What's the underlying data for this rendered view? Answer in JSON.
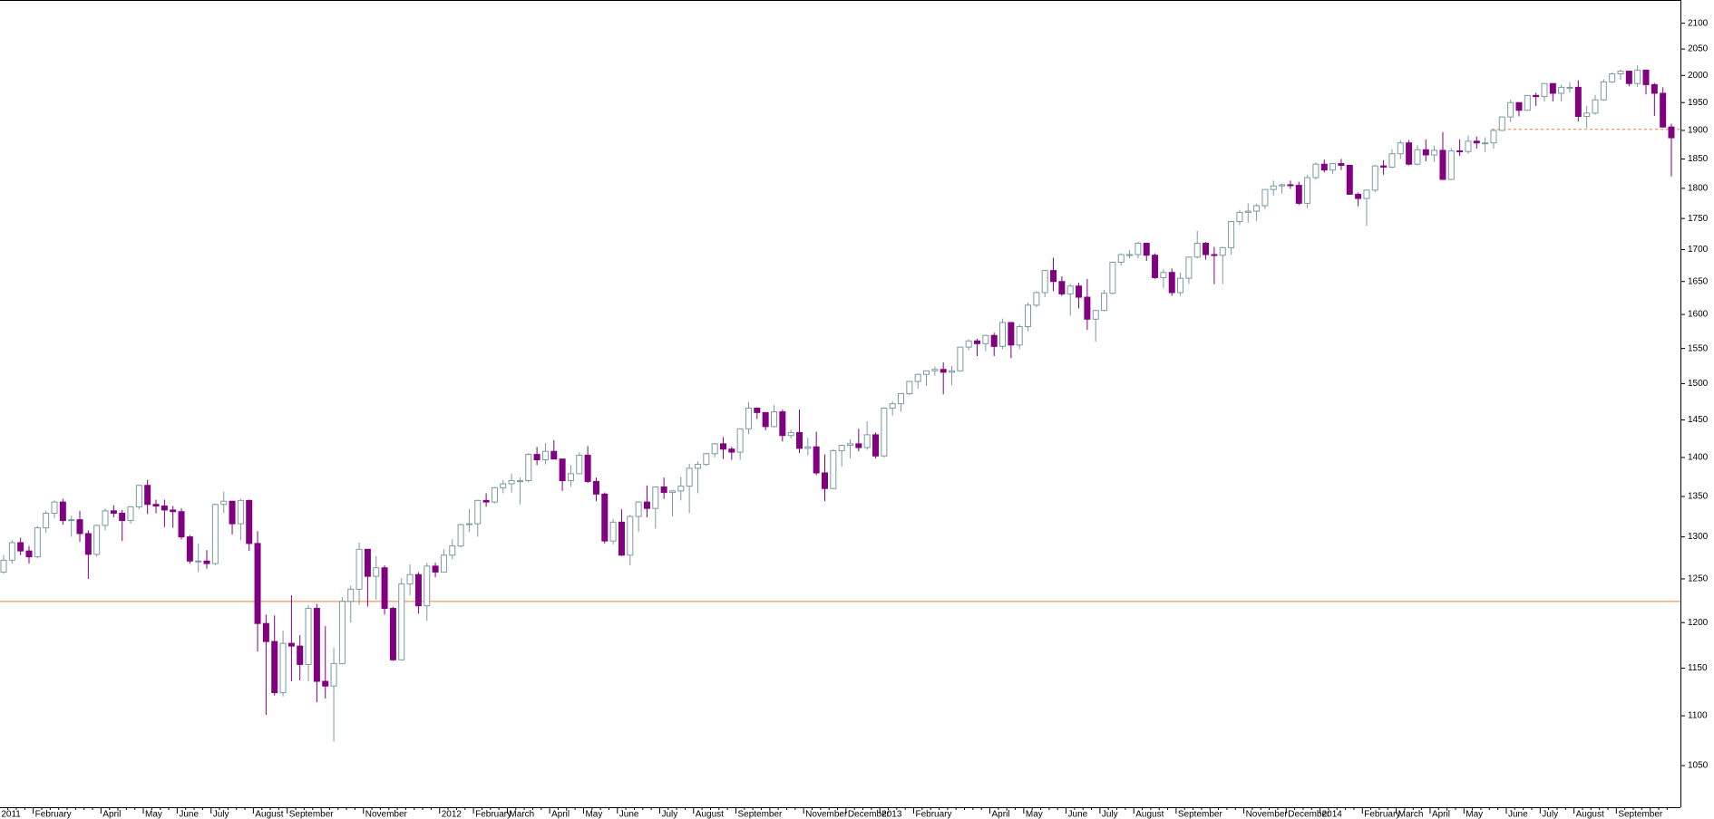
{
  "chart_data": {
    "type": "candlestick",
    "log": true,
    "ylim": [
      1010,
      2146
    ],
    "yticks": [
      1050,
      1100,
      1150,
      1200,
      1250,
      1300,
      1350,
      1400,
      1450,
      1500,
      1550,
      1600,
      1650,
      1700,
      1750,
      1800,
      1850,
      1900,
      1950,
      2000,
      2050,
      2100
    ],
    "up_color": "#7a9aa0",
    "down_color": "#800080",
    "hlines": [
      {
        "value": 1224,
        "color": "#f4a070",
        "style": "solid"
      },
      {
        "value": 1902,
        "color": "#f4a070",
        "style": "dashed"
      }
    ],
    "categories": [
      "2011",
      null,
      null,
      null,
      "February",
      null,
      null,
      null,
      null,
      null,
      null,
      null,
      "April",
      null,
      null,
      null,
      null,
      "May",
      null,
      null,
      null,
      "June",
      null,
      null,
      null,
      "July",
      null,
      null,
      null,
      null,
      "August",
      null,
      null,
      null,
      "September",
      null,
      null,
      null,
      null,
      null,
      null,
      null,
      null,
      "November",
      null,
      null,
      null,
      null,
      null,
      null,
      null,
      null,
      "2012",
      null,
      null,
      null,
      "February",
      null,
      null,
      null,
      "March",
      null,
      null,
      null,
      null,
      "April",
      null,
      null,
      null,
      "May",
      null,
      null,
      null,
      "June",
      null,
      null,
      null,
      null,
      "July",
      null,
      null,
      null,
      "August",
      null,
      null,
      null,
      null,
      "September",
      null,
      null,
      null,
      null,
      null,
      null,
      null,
      "November",
      null,
      null,
      null,
      null,
      "December",
      null,
      null,
      null,
      "2013",
      null,
      null,
      null,
      "February",
      null,
      null,
      null,
      null,
      null,
      null,
      null,
      null,
      "April",
      null,
      null,
      null,
      "May",
      null,
      null,
      null,
      null,
      "June",
      null,
      null,
      null,
      "July",
      null,
      null,
      null,
      "August",
      null,
      null,
      null,
      null,
      "September",
      null,
      null,
      null,
      null,
      null,
      null,
      null,
      "November",
      null,
      null,
      null,
      null,
      "December",
      null,
      null,
      null,
      "2014",
      null,
      null,
      null,
      null,
      "February",
      null,
      null,
      null,
      "March",
      null,
      null,
      null,
      "April",
      null,
      null,
      null,
      "May",
      null,
      null,
      null,
      null,
      "June",
      null,
      null,
      null,
      "July",
      null,
      null,
      null,
      "August",
      null,
      null,
      null,
      null,
      "September",
      null,
      null,
      null,
      null,
      null,
      null
    ],
    "open": [
      1258,
      1272,
      1293,
      1283,
      1276,
      1311,
      1329,
      1343,
      1320,
      1321,
      1304,
      1279,
      1314,
      1332,
      1329,
      1320,
      1337,
      1364,
      1340,
      1338,
      1333,
      1331,
      1300,
      1271,
      1271,
      1268,
      1340,
      1344,
      1316,
      1345,
      1292,
      1199,
      1179,
      1124,
      1177,
      1174,
      1154,
      1216,
      1136,
      1131,
      1155,
      1224,
      1238,
      1285,
      1253,
      1263,
      1216,
      1159,
      1244,
      1255,
      1219,
      1265,
      1258,
      1278,
      1289,
      1315,
      1316,
      1345,
      1343,
      1361,
      1366,
      1370,
      1370,
      1404,
      1397,
      1408,
      1398,
      1370,
      1379,
      1403,
      1369,
      1353,
      1295,
      1318,
      1278,
      1325,
      1343,
      1335,
      1362,
      1355,
      1357,
      1363,
      1386,
      1391,
      1405,
      1418,
      1411,
      1407,
      1438,
      1466,
      1460,
      1441,
      1461,
      1429,
      1433,
      1412,
      1414,
      1380,
      1360,
      1409,
      1416,
      1418,
      1413,
      1430,
      1402,
      1466,
      1472,
      1486,
      1503,
      1513,
      1518,
      1520,
      1516,
      1518,
      1552,
      1561,
      1557,
      1569,
      1553,
      1588,
      1555,
      1582,
      1614,
      1633,
      1667,
      1650,
      1631,
      1643,
      1626,
      1593,
      1606,
      1632,
      1680,
      1692,
      1692,
      1710,
      1691,
      1656,
      1664,
      1633,
      1655,
      1688,
      1710,
      1692,
      1691,
      1703,
      1745,
      1760,
      1762,
      1771,
      1798,
      1804,
      1806,
      1805,
      1775,
      1818,
      1841,
      1831,
      1842,
      1839,
      1790,
      1783,
      1797,
      1838,
      1836,
      1859,
      1878,
      1841,
      1866,
      1857,
      1865,
      1815,
      1864,
      1863,
      1881,
      1878,
      1878,
      1900,
      1924,
      1950,
      1936,
      1963,
      1961,
      1985,
      1967,
      1978,
      1978,
      1925,
      1931,
      1955,
      1988,
      2003,
      2008,
      1985,
      2010,
      1983,
      1967,
      1906
    ],
    "high": [
      1278,
      1296,
      1299,
      1289,
      1313,
      1332,
      1345,
      1347,
      1326,
      1332,
      1308,
      1315,
      1335,
      1339,
      1333,
      1338,
      1365,
      1371,
      1346,
      1346,
      1338,
      1335,
      1302,
      1292,
      1284,
      1341,
      1356,
      1344,
      1347,
      1346,
      1307,
      1209,
      1208,
      1191,
      1231,
      1186,
      1220,
      1221,
      1196,
      1172,
      1229,
      1242,
      1293,
      1285,
      1277,
      1266,
      1218,
      1251,
      1267,
      1258,
      1269,
      1269,
      1285,
      1297,
      1316,
      1334,
      1346,
      1354,
      1362,
      1371,
      1379,
      1374,
      1406,
      1414,
      1419,
      1423,
      1398,
      1390,
      1407,
      1415,
      1374,
      1355,
      1322,
      1334,
      1327,
      1344,
      1364,
      1362,
      1374,
      1358,
      1375,
      1392,
      1395,
      1406,
      1419,
      1427,
      1414,
      1438,
      1474,
      1467,
      1460,
      1470,
      1464,
      1437,
      1464,
      1426,
      1434,
      1404,
      1411,
      1417,
      1424,
      1438,
      1448,
      1433,
      1467,
      1475,
      1486,
      1503,
      1514,
      1518,
      1524,
      1530,
      1525,
      1552,
      1563,
      1564,
      1570,
      1573,
      1594,
      1588,
      1585,
      1618,
      1635,
      1668,
      1687,
      1658,
      1646,
      1648,
      1654,
      1607,
      1637,
      1681,
      1694,
      1699,
      1712,
      1711,
      1694,
      1669,
      1670,
      1664,
      1689,
      1730,
      1712,
      1704,
      1704,
      1746,
      1764,
      1775,
      1774,
      1798,
      1813,
      1808,
      1813,
      1811,
      1823,
      1844,
      1849,
      1843,
      1850,
      1840,
      1793,
      1798,
      1840,
      1848,
      1867,
      1883,
      1883,
      1874,
      1884,
      1873,
      1897,
      1869,
      1884,
      1891,
      1889,
      1888,
      1901,
      1925,
      1955,
      1950,
      1963,
      1968,
      1986,
      1985,
      1983,
      1988,
      1991,
      1944,
      1964,
      1993,
      2006,
      2011,
      2009,
      2019,
      2011,
      1986,
      1978,
      1912
    ],
    "low": [
      1256,
      1268,
      1278,
      1268,
      1274,
      1305,
      1323,
      1315,
      1300,
      1294,
      1250,
      1276,
      1308,
      1324,
      1295,
      1316,
      1334,
      1328,
      1329,
      1312,
      1311,
      1297,
      1268,
      1258,
      1262,
      1266,
      1329,
      1303,
      1296,
      1283,
      1168,
      1101,
      1121,
      1120,
      1136,
      1137,
      1136,
      1114,
      1118,
      1074,
      1154,
      1200,
      1220,
      1218,
      1226,
      1209,
      1158,
      1158,
      1231,
      1210,
      1202,
      1252,
      1258,
      1273,
      1287,
      1306,
      1300,
      1337,
      1341,
      1354,
      1355,
      1340,
      1368,
      1390,
      1391,
      1398,
      1357,
      1362,
      1379,
      1367,
      1344,
      1292,
      1291,
      1277,
      1266,
      1306,
      1324,
      1310,
      1347,
      1325,
      1345,
      1329,
      1354,
      1389,
      1400,
      1398,
      1397,
      1397,
      1431,
      1451,
      1436,
      1440,
      1421,
      1425,
      1406,
      1403,
      1377,
      1344,
      1359,
      1388,
      1399,
      1408,
      1410,
      1399,
      1400,
      1456,
      1461,
      1484,
      1493,
      1497,
      1511,
      1485,
      1498,
      1517,
      1547,
      1539,
      1546,
      1539,
      1549,
      1536,
      1549,
      1575,
      1611,
      1626,
      1635,
      1628,
      1598,
      1609,
      1577,
      1560,
      1605,
      1630,
      1675,
      1686,
      1686,
      1682,
      1654,
      1640,
      1628,
      1628,
      1646,
      1686,
      1684,
      1646,
      1646,
      1692,
      1739,
      1743,
      1746,
      1766,
      1788,
      1791,
      1799,
      1772,
      1767,
      1815,
      1827,
      1824,
      1831,
      1790,
      1770,
      1738,
      1794,
      1823,
      1834,
      1850,
      1839,
      1839,
      1846,
      1845,
      1815,
      1814,
      1855,
      1859,
      1868,
      1862,
      1868,
      1899,
      1915,
      1925,
      1935,
      1944,
      1952,
      1952,
      1952,
      1968,
      1916,
      1904,
      1928,
      1953,
      1986,
      1992,
      1980,
      1979,
      1965,
      1926,
      1905,
      1820
    ],
    "close": [
      1272,
      1293,
      1283,
      1276,
      1311,
      1329,
      1343,
      1320,
      1321,
      1304,
      1279,
      1314,
      1332,
      1329,
      1320,
      1337,
      1364,
      1340,
      1338,
      1333,
      1331,
      1300,
      1271,
      1271,
      1268,
      1340,
      1344,
      1316,
      1345,
      1292,
      1199,
      1179,
      1124,
      1177,
      1174,
      1154,
      1216,
      1136,
      1131,
      1155,
      1224,
      1238,
      1285,
      1253,
      1263,
      1216,
      1159,
      1244,
      1255,
      1219,
      1265,
      1258,
      1278,
      1289,
      1315,
      1316,
      1345,
      1343,
      1361,
      1366,
      1370,
      1370,
      1404,
      1397,
      1408,
      1398,
      1370,
      1379,
      1403,
      1369,
      1353,
      1295,
      1318,
      1278,
      1325,
      1343,
      1335,
      1362,
      1355,
      1357,
      1363,
      1386,
      1391,
      1405,
      1418,
      1411,
      1407,
      1438,
      1466,
      1460,
      1441,
      1461,
      1429,
      1433,
      1412,
      1414,
      1380,
      1360,
      1409,
      1416,
      1418,
      1413,
      1430,
      1402,
      1466,
      1472,
      1486,
      1503,
      1513,
      1518,
      1520,
      1516,
      1518,
      1552,
      1561,
      1557,
      1569,
      1553,
      1588,
      1555,
      1582,
      1614,
      1633,
      1667,
      1650,
      1631,
      1643,
      1626,
      1593,
      1606,
      1632,
      1680,
      1692,
      1692,
      1710,
      1691,
      1656,
      1664,
      1633,
      1655,
      1688,
      1710,
      1692,
      1691,
      1703,
      1745,
      1760,
      1762,
      1771,
      1798,
      1804,
      1806,
      1805,
      1775,
      1818,
      1841,
      1831,
      1842,
      1839,
      1790,
      1783,
      1797,
      1838,
      1836,
      1859,
      1878,
      1841,
      1866,
      1857,
      1865,
      1815,
      1864,
      1863,
      1881,
      1878,
      1878,
      1900,
      1924,
      1950,
      1936,
      1963,
      1961,
      1985,
      1967,
      1978,
      1978,
      1925,
      1931,
      1955,
      1988,
      2003,
      2008,
      1985,
      2010,
      1983,
      1967,
      1906,
      1887
    ]
  }
}
